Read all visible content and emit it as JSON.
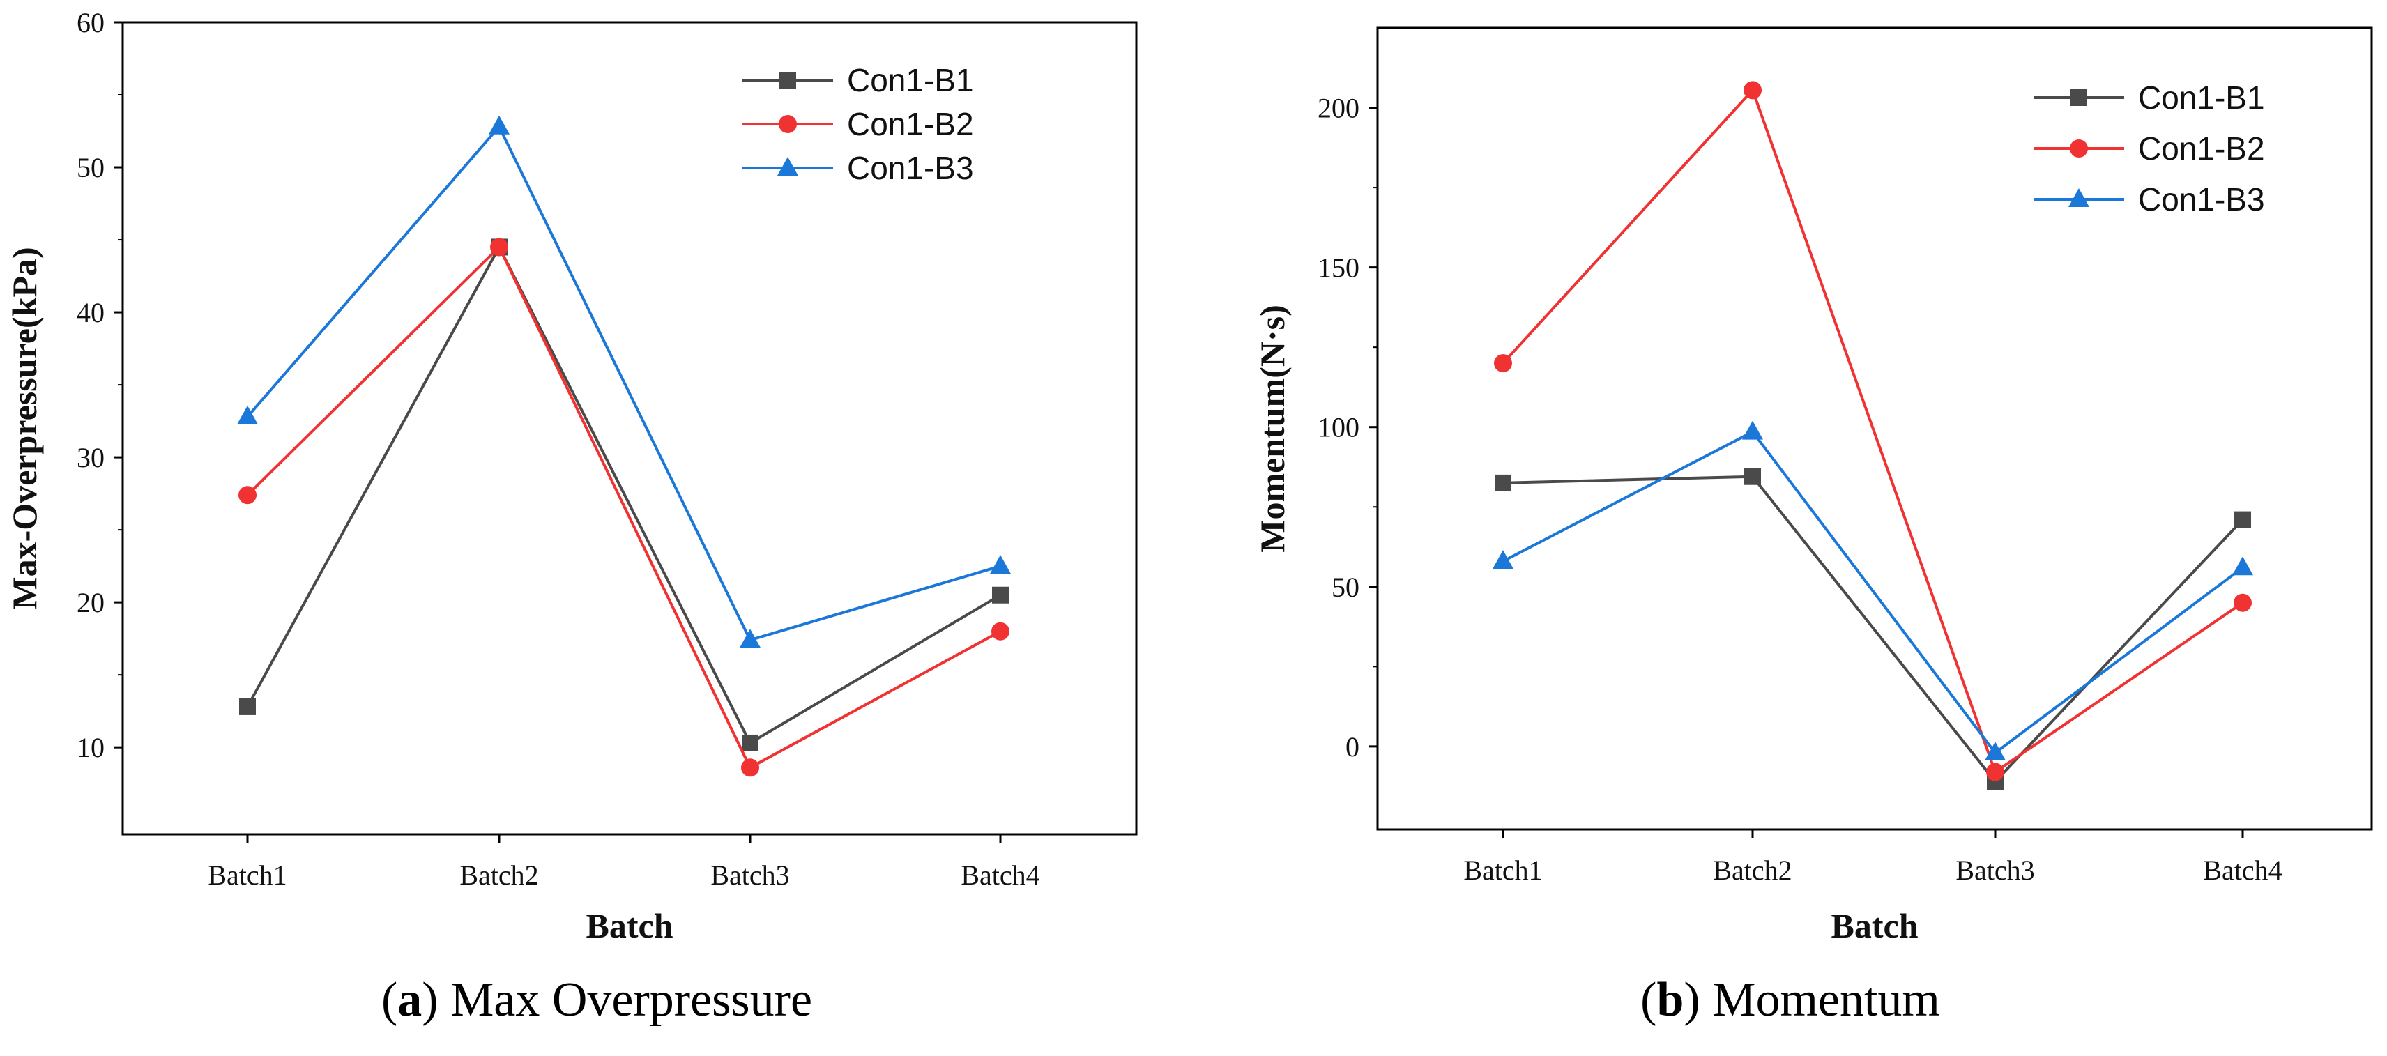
{
  "captions": [
    {
      "letter": "a",
      "text": "Max Overpressure"
    },
    {
      "letter": "b",
      "text": "Momentum"
    }
  ],
  "chart_data": [
    {
      "type": "line",
      "categories": [
        "Batch1",
        "Batch2",
        "Batch3",
        "Batch4"
      ],
      "xlabel": "Batch",
      "ylabel": "Max-Overpressure(kPa)",
      "ylim": [
        4,
        60
      ],
      "yticks": [
        10,
        20,
        30,
        40,
        50,
        60
      ],
      "legend_position": "top-right",
      "grid": false,
      "series": [
        {
          "name": "Con1-B1",
          "marker": "square",
          "color": "#4a4a4a",
          "values": [
            12.8,
            44.5,
            10.3,
            20.5
          ]
        },
        {
          "name": "Con1-B2",
          "marker": "circle",
          "color": "#f03232",
          "values": [
            27.4,
            44.5,
            8.6,
            18.0
          ]
        },
        {
          "name": "Con1-B3",
          "marker": "triangle",
          "color": "#1c78d8",
          "values": [
            32.8,
            52.8,
            17.4,
            22.5
          ]
        }
      ]
    },
    {
      "type": "line",
      "categories": [
        "Batch1",
        "Batch2",
        "Batch3",
        "Batch4"
      ],
      "xlabel": "Batch",
      "ylabel": "Momentum(N·s)",
      "ylim": [
        -26,
        225
      ],
      "yticks": [
        0,
        50,
        100,
        150,
        200
      ],
      "legend_position": "top-right",
      "grid": false,
      "series": [
        {
          "name": "Con1-B1",
          "marker": "square",
          "color": "#4a4a4a",
          "values": [
            82.5,
            84.5,
            -11.0,
            71.0
          ]
        },
        {
          "name": "Con1-B2",
          "marker": "circle",
          "color": "#f03232",
          "values": [
            120.0,
            205.5,
            -8.0,
            45.0
          ]
        },
        {
          "name": "Con1-B3",
          "marker": "triangle",
          "color": "#1c78d8",
          "values": [
            58.0,
            98.5,
            -2.0,
            56.0
          ]
        }
      ]
    }
  ]
}
